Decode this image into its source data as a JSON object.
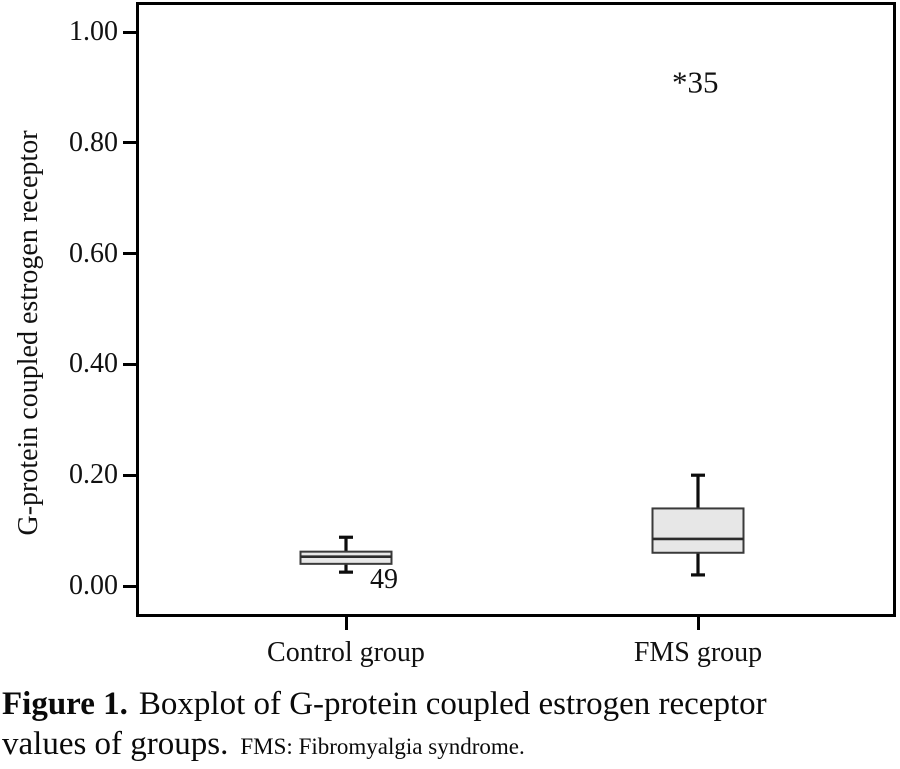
{
  "figure": {
    "label": "Figure 1.",
    "caption_line1": "Boxplot of G-protein coupled estrogen receptor",
    "caption_line2": "values of groups.",
    "footnote": "FMS: Fibromyalgia syndrome."
  },
  "chart_data": {
    "type": "boxplot",
    "title": "",
    "xlabel": "",
    "ylabel": "G-protein coupled estrogen receptor",
    "ylim": [
      0.0,
      1.05
    ],
    "grid": false,
    "yticks": [
      {
        "value": 0.0,
        "label": "0.00"
      },
      {
        "value": 0.2,
        "label": "0.20"
      },
      {
        "value": 0.4,
        "label": "0.40"
      },
      {
        "value": 0.6,
        "label": "0.60"
      },
      {
        "value": 0.8,
        "label": "0.80"
      },
      {
        "value": 1.0,
        "label": "1.00"
      }
    ],
    "categories": [
      "Control group",
      "FMS group"
    ],
    "colors": {
      "box_fill": "#e7e7e7",
      "box_stroke": "#3a3a3a",
      "median_stroke": "#2b2b2b",
      "whisker_stroke": "#0d0d0d",
      "frame_stroke": "#000000"
    },
    "series": [
      {
        "category": "Control group",
        "whisker_low": 0.025,
        "q1": 0.04,
        "median": 0.053,
        "q3": 0.062,
        "whisker_high": 0.088,
        "outlier_labels": [
          {
            "text": "49",
            "value": 0.018,
            "type": "outlier-case-number"
          }
        ]
      },
      {
        "category": "FMS group",
        "whisker_low": 0.02,
        "q1": 0.06,
        "median": 0.085,
        "q3": 0.14,
        "whisker_high": 0.2,
        "outlier_labels": [
          {
            "text": "*35",
            "value": 0.92,
            "type": "extreme-outlier-case-number"
          }
        ]
      }
    ]
  }
}
